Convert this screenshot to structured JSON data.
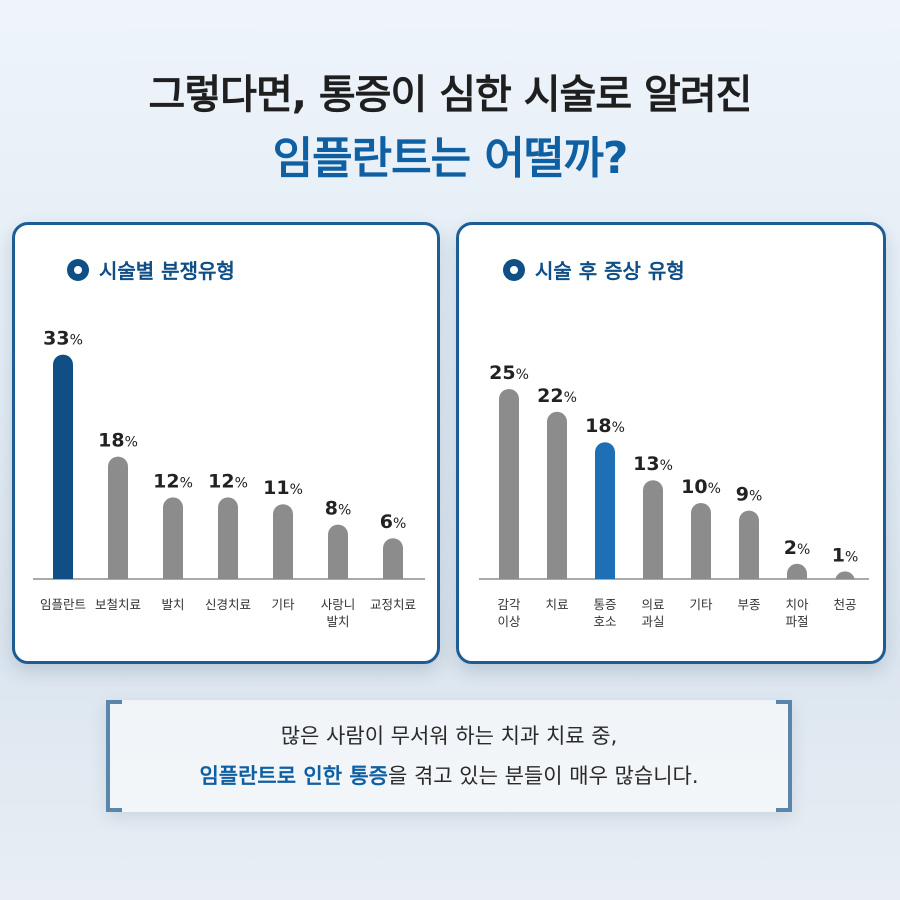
{
  "header": {
    "line1": "그렇다면, 통증이 심한 시술로 알려진",
    "line2": "임플란트는 어떨까?"
  },
  "colors": {
    "highlight": "#0f4f86",
    "highlight_right": "#1f6fb5",
    "bar": "#8c8c8c",
    "accent_text": "#0f5fa3"
  },
  "chart_data": [
    {
      "type": "bar",
      "title": "시술별 분쟁유형",
      "categories": [
        "임플란트",
        "보철치료",
        "발치",
        "신경치료",
        "기타",
        "사랑니\n발치",
        "교정치료"
      ],
      "values": [
        33,
        18,
        12,
        12,
        11,
        8,
        6
      ],
      "unit": "%",
      "highlight_index": 0
    },
    {
      "type": "bar",
      "title": "시술 후 증상 유형",
      "categories": [
        "감각\n이상",
        "치료",
        "통증\n호소",
        "의료\n과실",
        "기타",
        "부종",
        "치아\n파절",
        "천공"
      ],
      "values": [
        25,
        22,
        18,
        13,
        10,
        9,
        2,
        1
      ],
      "unit": "%",
      "highlight_index": 2
    }
  ],
  "note": {
    "line1": "많은 사람이 무서워 하는 치과 치료 중,",
    "line2_highlight": "임플란트로 인한 통증",
    "line2_rest": "을 겪고 있는 분들이 매우 많습니다."
  }
}
